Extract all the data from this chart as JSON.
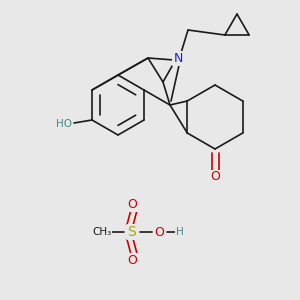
{
  "bg_color": "#e8e8e8",
  "bond_color": "#1a1a1a",
  "bond_lw": 1.2,
  "N_color": "#2222cc",
  "O_color": "#cc0000",
  "S_color": "#aaaa00",
  "OH_color": "#448888",
  "label_fs": 9,
  "small_fs": 7.5,
  "xlim": [
    0,
    300
  ],
  "ylim": [
    0,
    300
  ]
}
